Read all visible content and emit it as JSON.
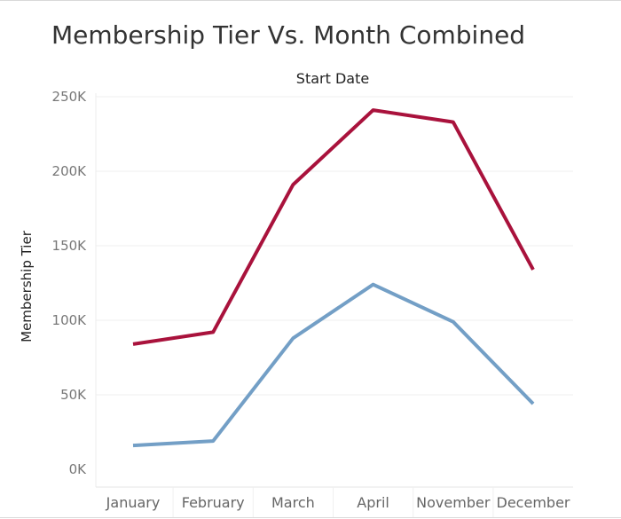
{
  "chart_data": {
    "type": "line",
    "title": "Membership Tier Vs. Month Combined",
    "column_header": "Start Date",
    "ylabel": "Membership Tier",
    "xlabel": "",
    "categories": [
      "January",
      "February",
      "March",
      "April",
      "November",
      "December"
    ],
    "yticks": [
      0,
      50000,
      100000,
      150000,
      200000,
      250000
    ],
    "ytick_labels": [
      "0K",
      "50K",
      "100K",
      "150K",
      "200K",
      "250K"
    ],
    "ylim": [
      0,
      250000
    ],
    "grid": "horizontal",
    "legend": "none",
    "series": [
      {
        "color": "#a9123c",
        "values": [
          84000,
          92000,
          191000,
          241000,
          233000,
          134000
        ]
      },
      {
        "color": "#739fc6",
        "values": [
          16000,
          19000,
          88000,
          124000,
          99000,
          44000
        ]
      }
    ]
  }
}
